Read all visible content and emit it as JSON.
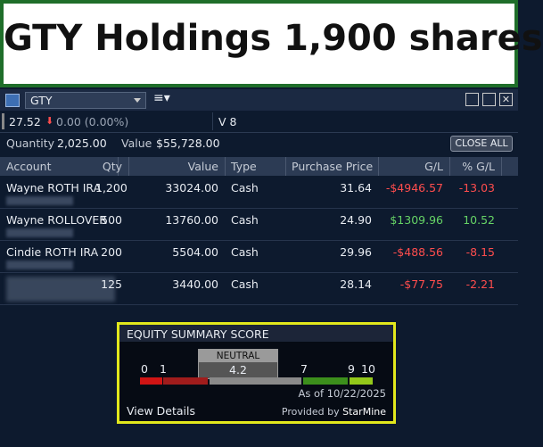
{
  "banner": {
    "title": "GTY Holdings 1,900 shares"
  },
  "toolbar": {
    "symbol": "GTY"
  },
  "quote": {
    "price": "27.52",
    "change": "0.00 (0.00%)",
    "volume": "V 8"
  },
  "summary": {
    "quantity_label": "Quantity",
    "quantity": "2,025.00",
    "value_label": "Value",
    "value": "$55,728.00",
    "close_all": "CLOSE ALL"
  },
  "table": {
    "columns": [
      "Account",
      "Qty",
      "Value",
      "Type",
      "Purchase Price",
      "G/L",
      "% G/L"
    ],
    "rows": [
      {
        "account": "Wayne ROTH IRA",
        "qty": "1,200",
        "value": "33024.00",
        "type": "Cash",
        "purchase_price": "31.64",
        "gl": "-$4946.57",
        "pct_gl": "-13.03",
        "color": "#ff4d4d"
      },
      {
        "account": "Wayne ROLLOVER",
        "qty": "500",
        "value": "13760.00",
        "type": "Cash",
        "purchase_price": "24.90",
        "gl": "$1309.96",
        "pct_gl": "10.52",
        "color": "#66d466"
      },
      {
        "account": "Cindie ROTH IRA",
        "qty": "200",
        "value": "5504.00",
        "type": "Cash",
        "purchase_price": "29.96",
        "gl": "-$488.56",
        "pct_gl": "-8.15",
        "color": "#ff4d4d"
      },
      {
        "qty": "125",
        "value": "3440.00",
        "type": "Cash",
        "purchase_price": "28.14",
        "gl": "-$77.75",
        "pct_gl": "-2.21",
        "color": "#ff4d4d"
      }
    ]
  },
  "equity_score": {
    "title": "EQUITY SUMMARY SCORE",
    "rating": "NEUTRAL",
    "score": "4.2",
    "scale_labels": [
      "0",
      "1",
      "7",
      "9",
      "10"
    ],
    "as_of": "As of 10/22/2025",
    "view_details": "View Details",
    "provided_by": "Provided by",
    "provider": "StarMine"
  }
}
